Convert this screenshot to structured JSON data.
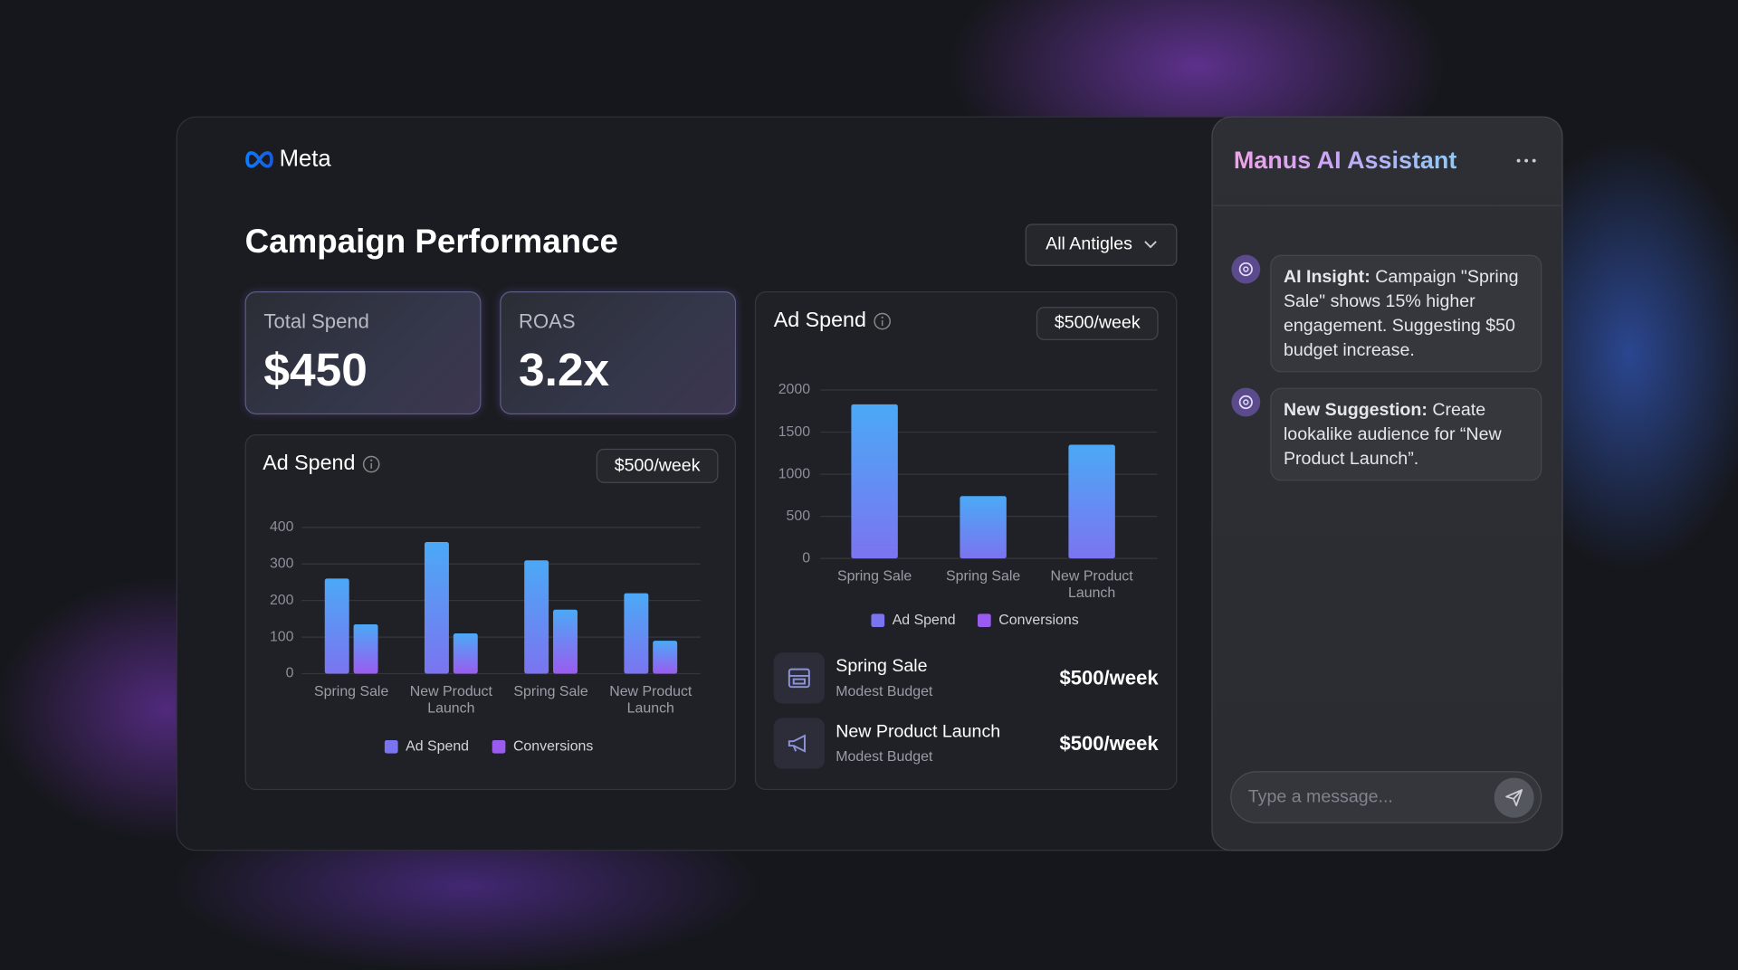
{
  "header": {
    "brand": "Meta",
    "title": "Campaign Performance",
    "filter": "All Antigles"
  },
  "kpis": [
    {
      "label": "Total Spend",
      "value": "$450"
    },
    {
      "label": "ROAS",
      "value": "3.2x"
    }
  ],
  "charts": [
    {
      "type": "bar",
      "title": "Ad Spend",
      "badge": "$500/week",
      "categories": [
        "Spring Sale",
        "New Product Launch",
        "Spring Sale",
        "New Product Launch"
      ],
      "series": [
        {
          "name": "Ad Spend",
          "color": "#7b74f0",
          "values": [
            260,
            360,
            310,
            220
          ]
        },
        {
          "name": "Conversions",
          "color": "#9a5cf0",
          "values": [
            135,
            110,
            175,
            90
          ]
        }
      ],
      "ylim": [
        0,
        400
      ],
      "yticks": [
        0,
        100,
        200,
        300,
        400
      ],
      "grid": true,
      "legend": "bottom"
    },
    {
      "type": "bar",
      "title": "Ad Spend",
      "badge": "$500/week",
      "categories": [
        "Spring Sale",
        "Spring Sale",
        "New Product Launch"
      ],
      "series": [
        {
          "name": "Ad Spend",
          "color": "#7b74f0",
          "values": [
            1830,
            740,
            1350
          ]
        },
        {
          "name": "Conversions",
          "color": "#9a5cf0",
          "values": [
            null,
            null,
            null
          ]
        }
      ],
      "ylim": [
        0,
        2000
      ],
      "yticks": [
        0,
        500,
        1000,
        1500,
        2000
      ],
      "grid": true,
      "legend": "bottom"
    }
  ],
  "campaigns": [
    {
      "name": "Spring Sale",
      "budget": "Modest Budget",
      "rate": "$500/week"
    },
    {
      "name": "New Product Launch",
      "budget": "Modest Budget",
      "rate": "$500/week"
    }
  ],
  "assistant": {
    "title": "Manus AI Assistant",
    "messages": [
      {
        "label": "AI Insight:",
        "text": "Campaign \"Spring Sale\" shows 15% higher engagement. Suggesting $50 budget increase."
      },
      {
        "label": "New Suggestion:",
        "text": "Create lookalike audience for “New Product Launch”."
      }
    ],
    "placeholder": "Type a message..."
  }
}
